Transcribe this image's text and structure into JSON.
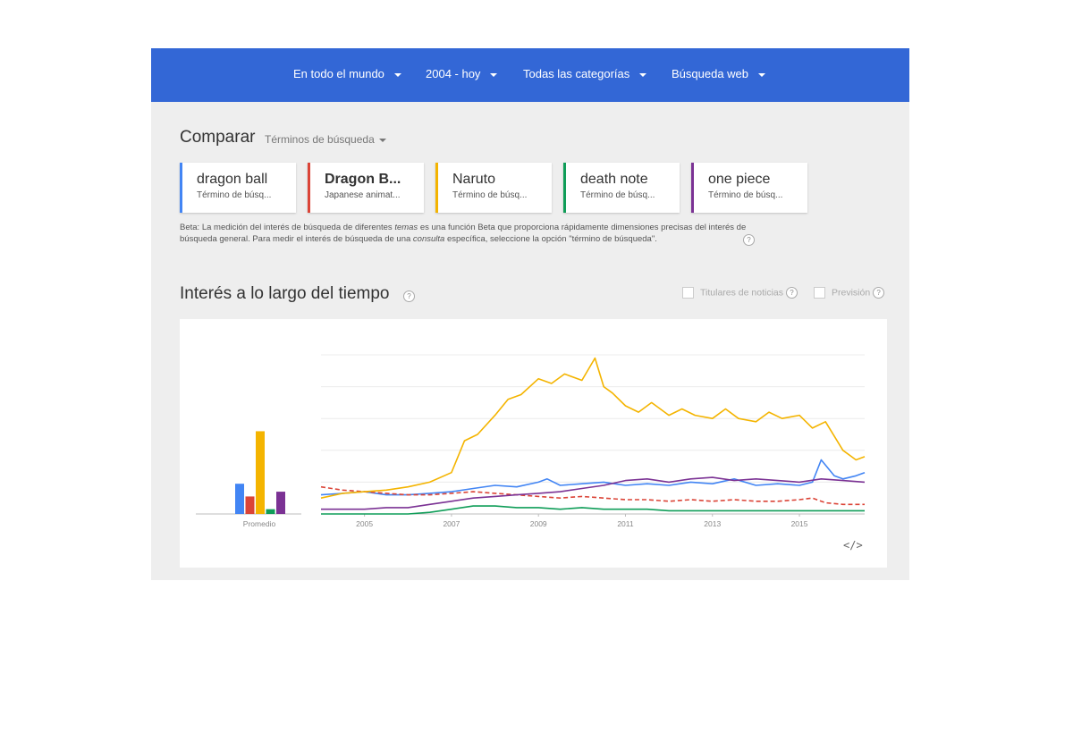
{
  "filters": [
    {
      "label": "En todo el mundo"
    },
    {
      "label": "2004 - hoy"
    },
    {
      "label": "Todas las categorías"
    },
    {
      "label": "Búsqueda web"
    }
  ],
  "compare": {
    "title": "Comparar",
    "type_label": "Términos de búsqueda"
  },
  "terms": [
    {
      "name": "dragon ball",
      "sub": "Término de búsq...",
      "color": "#4285f4"
    },
    {
      "name": "Dragon B...",
      "sub": "Japanese animat...",
      "color": "#db4437"
    },
    {
      "name": "Naruto",
      "sub": "Término de búsq...",
      "color": "#f4b400"
    },
    {
      "name": "death note",
      "sub": "Término de búsq...",
      "color": "#0f9d58"
    },
    {
      "name": "one piece",
      "sub": "Término de búsq...",
      "color": "#7b3294"
    }
  ],
  "beta_note": {
    "p1": "Beta: La medición del interés de búsqueda de diferentes ",
    "em1": "temas",
    "p2": " es una función Beta que proporciona rápidamente dimensiones precisas del interés de búsqueda general. Para medir el interés de búsqueda de una ",
    "em2": "consulta",
    "p3": " específica, seleccione la opción \"término de búsqueda\"."
  },
  "interest": {
    "title": "Interés a lo largo del tiempo",
    "news_label": "Titulares de noticias",
    "forecast_label": "Previsión",
    "help": "?"
  },
  "embed_label": "</>",
  "chart_data": {
    "type": "line",
    "x_start": 2004,
    "x_end": 2016.5,
    "ylim": [
      0,
      100
    ],
    "grid": true,
    "xticks": [
      2005,
      2007,
      2009,
      2011,
      2013,
      2015
    ],
    "average_label": "Promedio",
    "averages": [
      19,
      11,
      52,
      3,
      14
    ],
    "series": [
      {
        "name": "dragon ball",
        "color": "#4285f4",
        "dashed": false,
        "x": [
          2004,
          2004.5,
          2005,
          2005.5,
          2006,
          2006.5,
          2007,
          2007.5,
          2008,
          2008.5,
          2009,
          2009.2,
          2009.5,
          2010,
          2010.5,
          2011,
          2011.5,
          2012,
          2012.5,
          2013,
          2013.5,
          2014,
          2014.5,
          2015,
          2015.3,
          2015.5,
          2015.8,
          2016,
          2016.3,
          2016.5
        ],
        "y": [
          12,
          13,
          14,
          12,
          12,
          13,
          14,
          16,
          18,
          17,
          20,
          22,
          18,
          19,
          20,
          18,
          19,
          18,
          20,
          19,
          22,
          18,
          19,
          18,
          20,
          34,
          24,
          22,
          24,
          26
        ]
      },
      {
        "name": "Dragon B...",
        "color": "#db4437",
        "dashed": true,
        "x": [
          2004,
          2004.5,
          2005,
          2005.5,
          2006,
          2006.5,
          2007,
          2007.5,
          2008,
          2008.5,
          2009,
          2009.5,
          2010,
          2010.5,
          2011,
          2011.5,
          2012,
          2012.5,
          2013,
          2013.5,
          2014,
          2014.5,
          2015,
          2015.3,
          2015.6,
          2016,
          2016.5
        ],
        "y": [
          17,
          15,
          14,
          13,
          12,
          12,
          13,
          14,
          13,
          12,
          11,
          10,
          11,
          10,
          9,
          9,
          8,
          9,
          8,
          9,
          8,
          8,
          9,
          10,
          7,
          6,
          6
        ]
      },
      {
        "name": "Naruto",
        "color": "#f4b400",
        "dashed": false,
        "x": [
          2004,
          2004.5,
          2005,
          2005.5,
          2006,
          2006.5,
          2007,
          2007.3,
          2007.6,
          2008,
          2008.3,
          2008.6,
          2009,
          2009.3,
          2009.6,
          2010,
          2010.3,
          2010.5,
          2010.7,
          2011,
          2011.3,
          2011.6,
          2012,
          2012.3,
          2012.6,
          2013,
          2013.3,
          2013.6,
          2014,
          2014.3,
          2014.6,
          2015,
          2015.3,
          2015.6,
          2016,
          2016.3,
          2016.5
        ],
        "y": [
          10,
          13,
          14,
          15,
          17,
          20,
          26,
          46,
          50,
          62,
          72,
          75,
          85,
          82,
          88,
          84,
          98,
          80,
          76,
          68,
          64,
          70,
          62,
          66,
          62,
          60,
          66,
          60,
          58,
          64,
          60,
          62,
          54,
          58,
          40,
          34,
          36
        ]
      },
      {
        "name": "death note",
        "color": "#0f9d58",
        "dashed": false,
        "x": [
          2004,
          2005,
          2006,
          2006.5,
          2007,
          2007.5,
          2008,
          2008.5,
          2009,
          2009.5,
          2010,
          2010.5,
          2011,
          2011.5,
          2012,
          2013,
          2014,
          2015,
          2016,
          2016.5
        ],
        "y": [
          0,
          0,
          0,
          1,
          3,
          5,
          5,
          4,
          4,
          3,
          4,
          3,
          3,
          3,
          2,
          2,
          2,
          2,
          2,
          2
        ]
      },
      {
        "name": "one piece",
        "color": "#7b3294",
        "dashed": false,
        "x": [
          2004,
          2004.5,
          2005,
          2005.5,
          2006,
          2006.5,
          2007,
          2007.5,
          2008,
          2008.5,
          2009,
          2009.5,
          2010,
          2010.5,
          2011,
          2011.5,
          2012,
          2012.5,
          2013,
          2013.5,
          2014,
          2014.5,
          2015,
          2015.5,
          2016,
          2016.5
        ],
        "y": [
          3,
          3,
          3,
          4,
          4,
          6,
          8,
          10,
          11,
          12,
          13,
          14,
          16,
          18,
          21,
          22,
          20,
          22,
          23,
          21,
          22,
          21,
          20,
          22,
          21,
          20
        ]
      }
    ]
  }
}
